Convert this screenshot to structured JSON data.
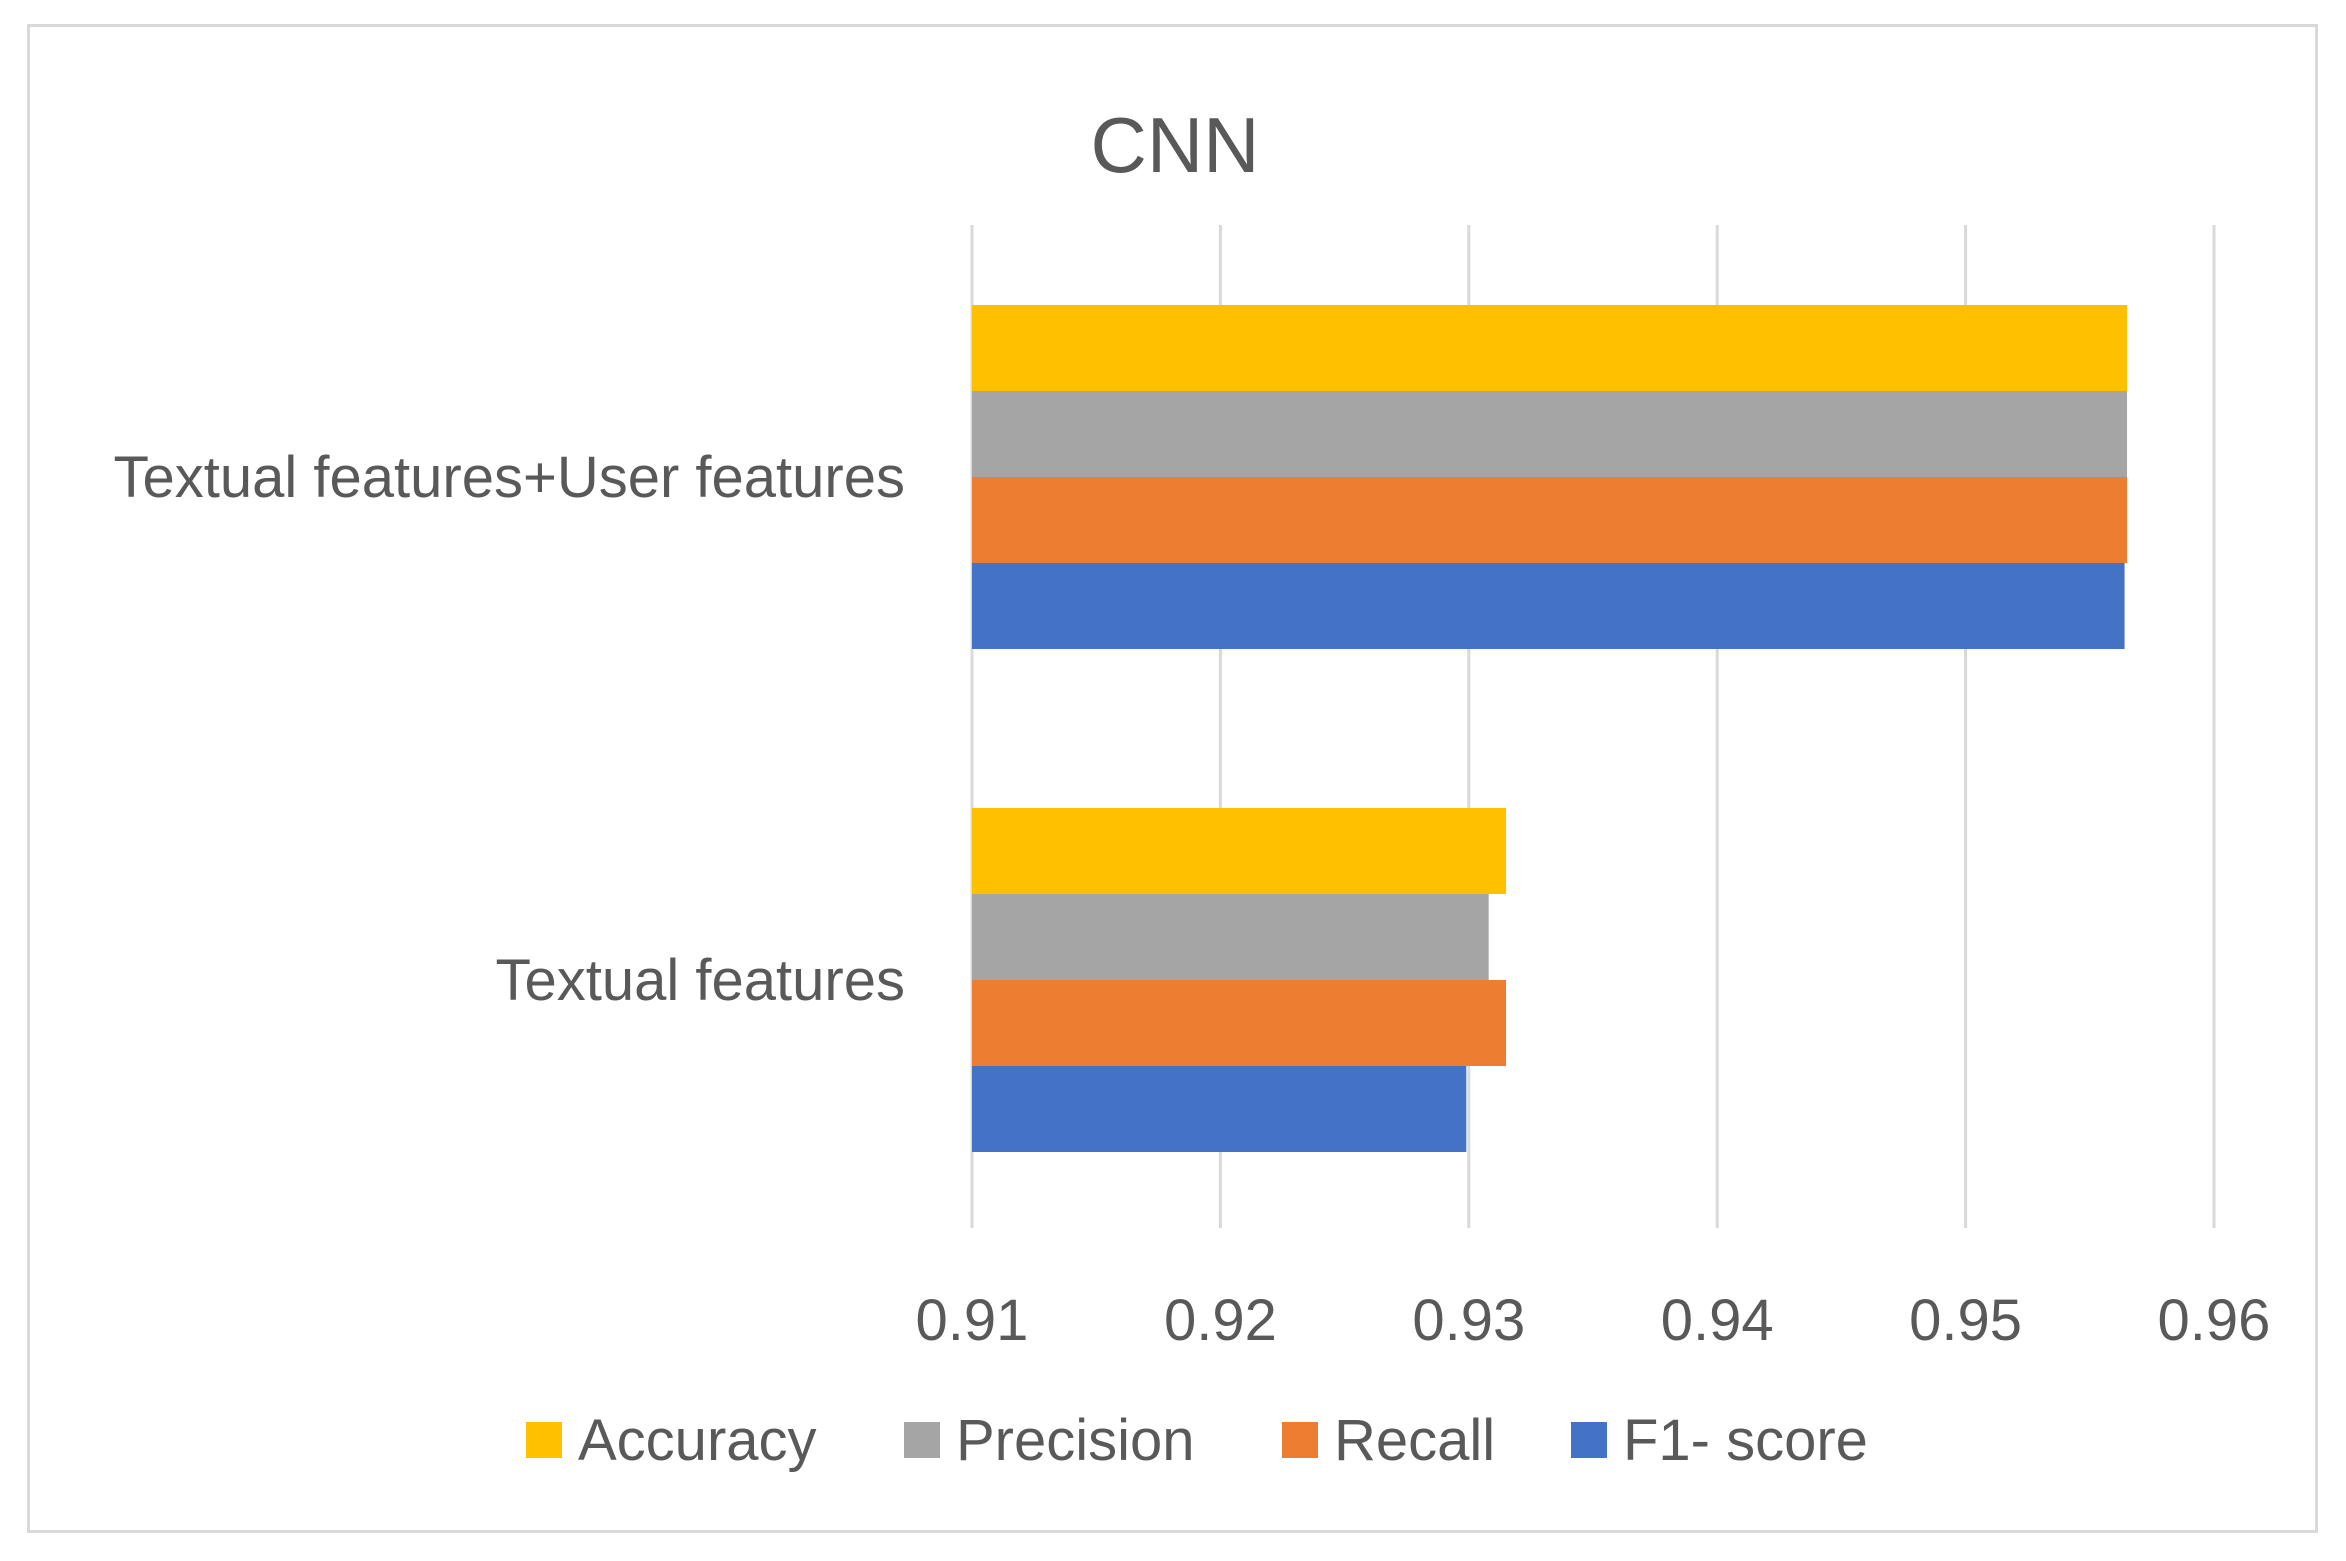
{
  "chart_data": {
    "type": "bar",
    "orientation": "horizontal",
    "title": "CNN",
    "xlabel": "",
    "ylabel": "",
    "xlim": [
      0.91,
      0.96
    ],
    "x_ticks": [
      "0.91",
      "0.92",
      "0.93",
      "0.94",
      "0.95",
      "0.96"
    ],
    "x_tick_values": [
      0.91,
      0.92,
      0.93,
      0.94,
      0.95,
      0.96
    ],
    "categories": [
      "Textual features+User features",
      "Textual features"
    ],
    "series": [
      {
        "name": "Accuracy",
        "color": "#FFC000",
        "values": [
          0.9565,
          0.9315
        ]
      },
      {
        "name": "Precision",
        "color": "#A5A5A5",
        "values": [
          0.9565,
          0.9308
        ]
      },
      {
        "name": "Recall",
        "color": "#ED7D31",
        "values": [
          0.9565,
          0.9315
        ]
      },
      {
        "name": "F1- score",
        "color": "#4472C4",
        "values": [
          0.9564,
          0.9299
        ]
      }
    ],
    "grid": true,
    "legend_position": "bottom"
  }
}
